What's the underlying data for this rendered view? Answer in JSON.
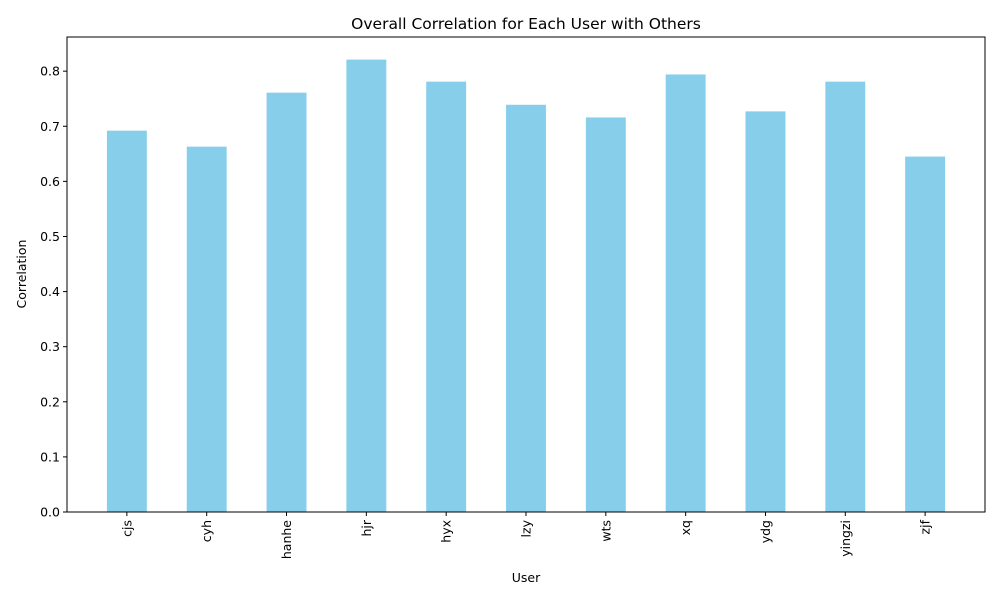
{
  "chart_data": {
    "type": "bar",
    "title": "Overall Correlation for Each User with Others",
    "xlabel": "User",
    "ylabel": "Correlation",
    "categories": [
      "cjs",
      "cyh",
      "hanhe",
      "hjr",
      "hyx",
      "lzy",
      "wts",
      "xq",
      "ydg",
      "yingzi",
      "zjf"
    ],
    "values": [
      0.692,
      0.663,
      0.761,
      0.821,
      0.781,
      0.739,
      0.716,
      0.794,
      0.727,
      0.781,
      0.645
    ],
    "ylim": [
      0,
      0.862
    ],
    "yticks": [
      0.0,
      0.1,
      0.2,
      0.3,
      0.4,
      0.5,
      0.6,
      0.7,
      0.8
    ],
    "ytick_labels": [
      "0.0",
      "0.1",
      "0.2",
      "0.3",
      "0.4",
      "0.5",
      "0.6",
      "0.7",
      "0.8"
    ],
    "bar_color": "#87ceeb",
    "grid": false,
    "legend": "none"
  }
}
